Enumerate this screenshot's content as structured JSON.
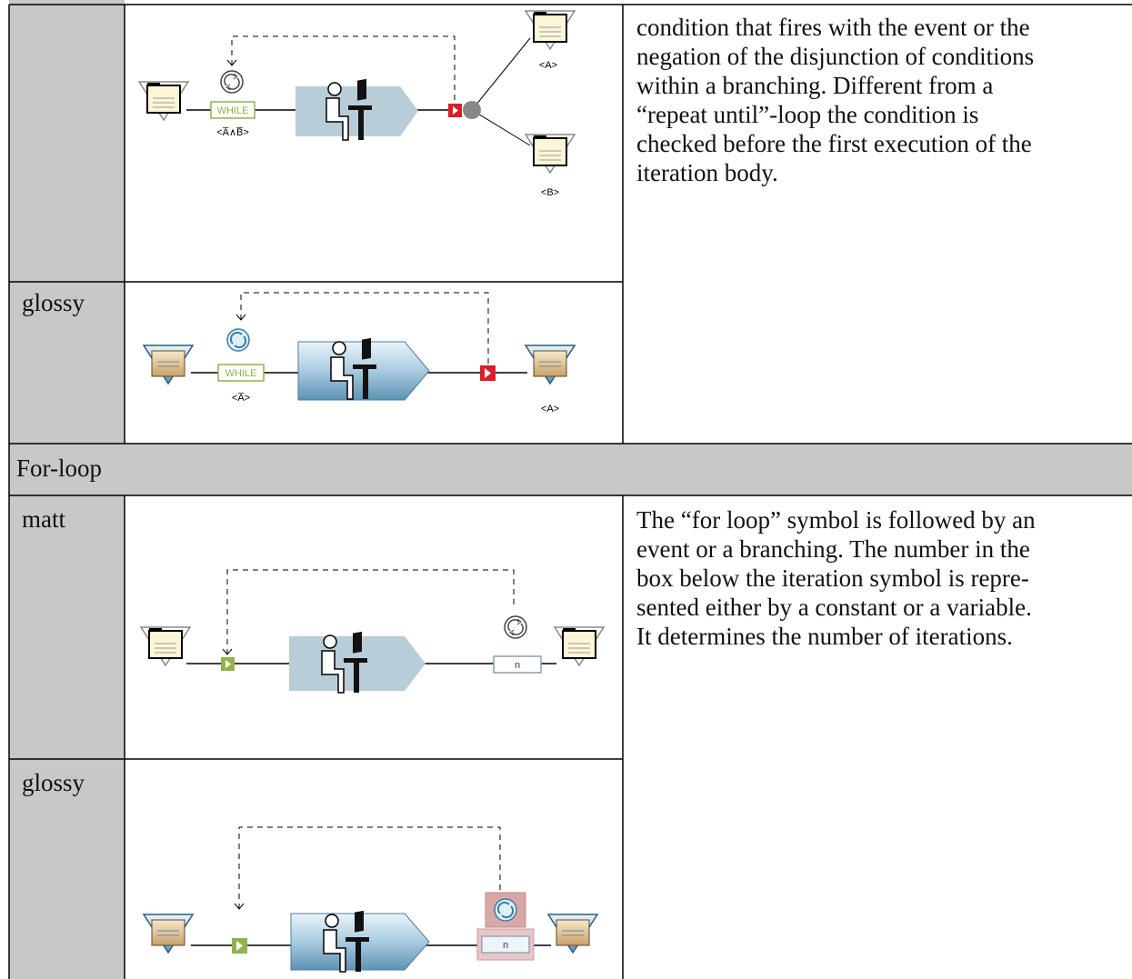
{
  "while_loop": {
    "matt": {
      "labels": {
        "while": "WHILE",
        "condition": "<A̅∧B̅>",
        "branch_a": "<A>",
        "branch_b": "<B>"
      }
    },
    "glossy": {
      "name": "glossy",
      "labels": {
        "while": "WHILE",
        "condition": "<A̅>",
        "outcome": "<A>"
      }
    },
    "description": [
      "condition that fires with the event or the",
      "negation of the disjunction of conditions",
      "within a branching. Different from a",
      "“repeat until”-loop the condition is",
      "checked before the first execution of the",
      "iteration body."
    ]
  },
  "for_loop": {
    "heading": "For-loop",
    "matt": {
      "name": "matt",
      "labels": {
        "count": "n"
      }
    },
    "glossy": {
      "name": "glossy",
      "labels": {
        "count": "n"
      }
    },
    "description": [
      "The “for loop” symbol is followed by an",
      "event or a branching. The number in the",
      "box below the iteration symbol is repre-",
      "sented either by a constant or a variable.",
      "It determines the number of iterations."
    ]
  }
}
